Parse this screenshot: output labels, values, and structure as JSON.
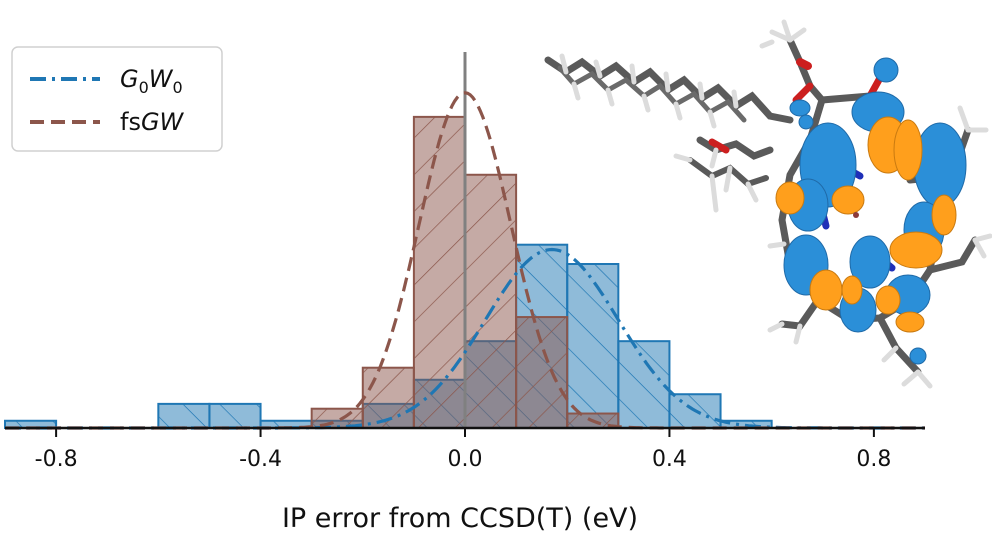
{
  "chart_data": {
    "type": "bar",
    "xlabel": "IP error from CCSD(T) (eV)",
    "xlim": [
      -0.9,
      0.9
    ],
    "xticks": [
      -0.8,
      -0.4,
      0.0,
      0.4,
      0.8
    ],
    "xtick_labels": [
      "-0.8",
      "-0.4",
      "0.0",
      "0.4",
      "0.8"
    ],
    "ylim": [
      0,
      17
    ],
    "grid": false,
    "legend_position": "top-left",
    "bin_width": 0.1,
    "series": [
      {
        "name": "G0W0",
        "color": "#1f77b4",
        "hatch": "\\\\",
        "bin_starts": [
          -0.9,
          -0.6,
          -0.5,
          -0.4,
          -0.3,
          -0.2,
          -0.1,
          0.0,
          0.1,
          0.2,
          0.3,
          0.4,
          0.5
        ],
        "counts": [
          0.3,
          1,
          1,
          0.3,
          0.3,
          1,
          2,
          3.6,
          7.6,
          6.8,
          3.6,
          1.4,
          0.3
        ],
        "fit": {
          "type": "gaussian",
          "mean": 0.17,
          "sigma": 0.13,
          "peak": 7.4,
          "line_style": "dash-dot"
        }
      },
      {
        "name": "fsGW",
        "color": "#8c564b",
        "hatch": "//",
        "bin_starts": [
          -0.3,
          -0.2,
          -0.1,
          0.0,
          0.1,
          0.2
        ],
        "counts": [
          0.8,
          2.5,
          12.9,
          10.5,
          4.6,
          0.6
        ],
        "fit": {
          "type": "gaussian",
          "mean": 0.0,
          "sigma": 0.09,
          "peak": 13.9,
          "line_style": "dashed"
        }
      }
    ],
    "reference_line": {
      "x": 0.0,
      "color": "#808080"
    }
  },
  "legend": {
    "items": [
      {
        "base": "G",
        "sub1": "0",
        "mid": "W",
        "sub2": "0",
        "color": "#1f77b4"
      },
      {
        "prefix": "fs",
        "italic": "GW",
        "color": "#8c564b"
      }
    ]
  },
  "inset": {
    "colors": {
      "lobe_blue": "#2b8fd8",
      "lobe_orange": "#ff9f1c",
      "bond": "#5a5a5a",
      "hydrogen": "#dcdcdc",
      "oxygen": "#cc1f1f",
      "nitrogen": "#1f2fb8"
    }
  }
}
